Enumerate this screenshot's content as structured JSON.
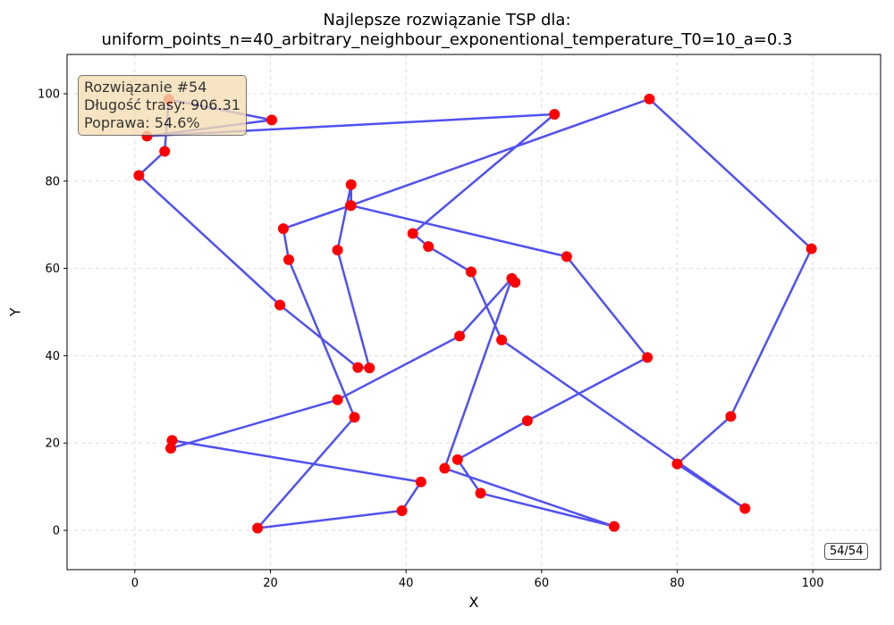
{
  "title_line1": "Najlepsze rozwiązanie TSP dla:",
  "title_line2": "uniform_points_n=40_arbitrary_neighbour_exponentional_temperature_T0=10_a=0.3",
  "info": {
    "solution": "Rozwiązanie #54",
    "length": "Długość trasy: 906.31",
    "improvement": "Poprawa: 54.6%"
  },
  "counter": "54/54",
  "chart_data": {
    "type": "line",
    "xlabel": "X",
    "ylabel": "Y",
    "xlim": [
      -10,
      110
    ],
    "ylim": [
      -9,
      109
    ],
    "xticks": [
      0,
      20,
      40,
      60,
      80,
      100
    ],
    "yticks": [
      0,
      20,
      40,
      60,
      80,
      100
    ],
    "grid": true,
    "route_color": "#3333ee",
    "point_color": "#ff0000",
    "route": [
      [
        5,
        98.7
      ],
      [
        20.2,
        94
      ],
      [
        1.8,
        90.3
      ],
      [
        61.9,
        95.3
      ],
      [
        41,
        68
      ],
      [
        43.3,
        65
      ],
      [
        49.6,
        59.2
      ],
      [
        54.1,
        43.6
      ],
      [
        90,
        5
      ],
      [
        80,
        15.2
      ],
      [
        87.9,
        26.1
      ],
      [
        99.8,
        64.5
      ],
      [
        75.9,
        98.8
      ],
      [
        31.8,
        74.4
      ],
      [
        21.9,
        69.1
      ],
      [
        22.7,
        62
      ],
      [
        32.4,
        25.9
      ],
      [
        18.1,
        0.5
      ],
      [
        39.4,
        4.5
      ],
      [
        42.2,
        11.1
      ],
      [
        5.5,
        20.6
      ],
      [
        5.3,
        18.8
      ],
      [
        29.9,
        29.9
      ],
      [
        47.9,
        44.5
      ],
      [
        55.6,
        57.7
      ],
      [
        45.7,
        14.2
      ],
      [
        70.7,
        0.9
      ],
      [
        51,
        8.5
      ],
      [
        47.6,
        16.2
      ],
      [
        57.9,
        25.1
      ],
      [
        75.6,
        39.6
      ],
      [
        63.7,
        62.7
      ],
      [
        31.9,
        74.4
      ],
      [
        31.9,
        79.2
      ],
      [
        29.9,
        64.2
      ],
      [
        34.6,
        37.2
      ],
      [
        32.9,
        37.3
      ],
      [
        21.4,
        51.6
      ],
      [
        0.6,
        81.3
      ],
      [
        4.4,
        86.8
      ]
    ],
    "extra_points": [
      [
        56.1,
        56.8
      ]
    ]
  }
}
